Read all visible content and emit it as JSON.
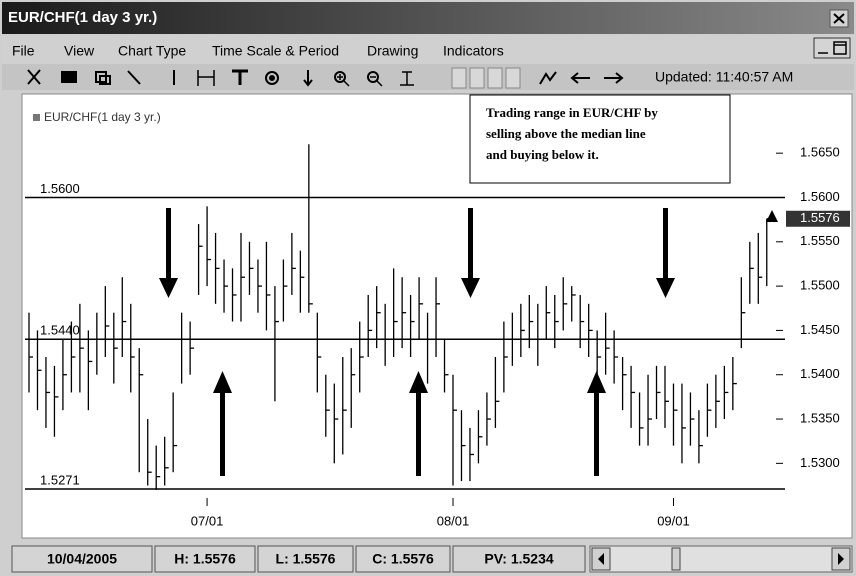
{
  "window": {
    "title": "EUR/CHF(1 day  3 yr.)"
  },
  "menu": [
    "File",
    "View",
    "Chart Type",
    "Time Scale & Period",
    "Drawing",
    "Indicators"
  ],
  "toolbar": {
    "updated": "Updated: 11:40:57 AM"
  },
  "chart_data": {
    "type": "ohlc",
    "legend": "EUR/CHF(1 day  3 yr.)",
    "annotation": [
      "Trading range in EUR/CHF by",
      "selling above the median line",
      "and buying below  it."
    ],
    "color": "#000000",
    "categories": [
      null,
      null,
      null,
      null,
      null,
      null,
      null,
      null,
      null,
      null,
      null,
      null,
      null,
      null,
      null,
      null,
      null,
      null,
      null,
      null,
      null,
      "07/01",
      null,
      null,
      null,
      null,
      null,
      null,
      null,
      null,
      null,
      null,
      null,
      null,
      null,
      null,
      null,
      null,
      null,
      null,
      null,
      null,
      null,
      null,
      null,
      null,
      null,
      null,
      null,
      null,
      "08/01",
      null,
      null,
      null,
      null,
      null,
      null,
      null,
      null,
      null,
      null,
      null,
      null,
      null,
      null,
      null,
      null,
      null,
      null,
      null,
      null,
      null,
      null,
      null,
      null,
      null,
      "09/01",
      null,
      null,
      null,
      null,
      null,
      null,
      null,
      null,
      null,
      null,
      null
    ],
    "high": [
      1.547,
      1.545,
      1.542,
      1.541,
      1.544,
      1.546,
      1.548,
      1.545,
      1.547,
      1.55,
      1.547,
      1.551,
      1.548,
      1.543,
      1.535,
      1.532,
      1.533,
      1.538,
      1.547,
      1.546,
      1.557,
      1.559,
      1.556,
      1.553,
      1.552,
      1.556,
      1.555,
      1.553,
      1.555,
      1.55,
      1.553,
      1.556,
      1.554,
      1.566,
      1.547,
      1.54,
      1.539,
      1.542,
      1.543,
      1.546,
      1.549,
      1.55,
      1.548,
      1.552,
      1.551,
      1.549,
      1.551,
      1.547,
      1.551,
      1.544,
      1.54,
      1.536,
      1.534,
      1.536,
      1.538,
      1.542,
      1.546,
      1.547,
      1.548,
      1.549,
      1.548,
      1.55,
      1.549,
      1.551,
      1.55,
      1.549,
      1.548,
      1.545,
      1.547,
      1.545,
      1.542,
      1.541,
      1.538,
      1.54,
      1.541,
      1.541,
      1.539,
      1.539,
      1.538,
      1.536,
      1.539,
      1.54,
      1.541,
      1.542,
      1.551,
      1.555,
      1.556,
      1.5576
    ],
    "low": [
      1.538,
      1.536,
      1.534,
      1.533,
      1.536,
      1.538,
      1.538,
      1.536,
      1.54,
      1.542,
      1.539,
      1.542,
      1.538,
      1.529,
      1.5275,
      1.527,
      1.5275,
      1.529,
      1.539,
      1.54,
      1.549,
      1.55,
      1.548,
      1.547,
      1.546,
      1.546,
      1.549,
      1.547,
      1.545,
      1.537,
      1.546,
      1.549,
      1.547,
      1.547,
      1.538,
      1.533,
      1.53,
      1.531,
      1.534,
      1.538,
      1.542,
      1.543,
      1.541,
      1.542,
      1.543,
      1.542,
      1.544,
      1.539,
      1.542,
      1.538,
      1.5275,
      1.528,
      1.528,
      1.53,
      1.532,
      1.534,
      1.538,
      1.541,
      1.542,
      1.543,
      1.541,
      1.544,
      1.543,
      1.545,
      1.546,
      1.543,
      1.542,
      1.539,
      1.54,
      1.539,
      1.536,
      1.534,
      1.532,
      1.532,
      1.535,
      1.534,
      1.532,
      1.53,
      1.532,
      1.53,
      1.533,
      1.534,
      1.535,
      1.536,
      1.543,
      1.548,
      1.548,
      1.55
    ],
    "close": [
      1.542,
      1.5405,
      1.538,
      1.5375,
      1.54,
      1.542,
      1.543,
      1.5415,
      1.544,
      1.5455,
      1.543,
      1.546,
      1.542,
      1.54,
      1.529,
      1.5285,
      1.5295,
      1.532,
      1.544,
      1.543,
      1.5545,
      1.553,
      1.552,
      1.55,
      1.549,
      1.551,
      1.552,
      1.55,
      1.549,
      1.546,
      1.55,
      1.552,
      1.551,
      1.548,
      1.542,
      1.536,
      1.535,
      1.536,
      1.54,
      1.542,
      1.545,
      1.547,
      1.544,
      1.546,
      1.547,
      1.546,
      1.548,
      1.544,
      1.548,
      1.54,
      1.536,
      1.532,
      1.531,
      1.533,
      1.535,
      1.537,
      1.542,
      1.544,
      1.545,
      1.546,
      1.544,
      1.547,
      1.546,
      1.548,
      1.549,
      1.546,
      1.545,
      1.542,
      1.543,
      1.542,
      1.54,
      1.538,
      1.534,
      1.535,
      1.538,
      1.537,
      1.536,
      1.534,
      1.535,
      1.532,
      1.536,
      1.537,
      1.538,
      1.539,
      1.547,
      1.552,
      1.551,
      1.5576
    ],
    "ylim": [
      1.5253,
      1.571
    ],
    "yticks": [
      {
        "value": 1.53,
        "label": "1.5300"
      },
      {
        "value": 1.535,
        "label": "1.5350"
      },
      {
        "value": 1.54,
        "label": "1.5400"
      },
      {
        "value": 1.545,
        "label": "1.5450"
      },
      {
        "value": 1.55,
        "label": "1.5500"
      },
      {
        "value": 1.555,
        "label": "1.5550"
      },
      {
        "value": 1.56,
        "label": "1.5600"
      },
      {
        "value": 1.565,
        "label": "1.5650"
      }
    ],
    "lines": [
      {
        "value": 1.56,
        "label": "1.5600"
      },
      {
        "value": 1.544,
        "label": "1.5440"
      },
      {
        "value": 1.5271,
        "label": "1.5271"
      }
    ],
    "last_price": {
      "value": 1.5576,
      "label": "1.5576"
    }
  },
  "status": [
    "10/04/2005",
    "H: 1.5576",
    "L: 1.5576",
    "C: 1.5576",
    "PV: 1.5234"
  ]
}
